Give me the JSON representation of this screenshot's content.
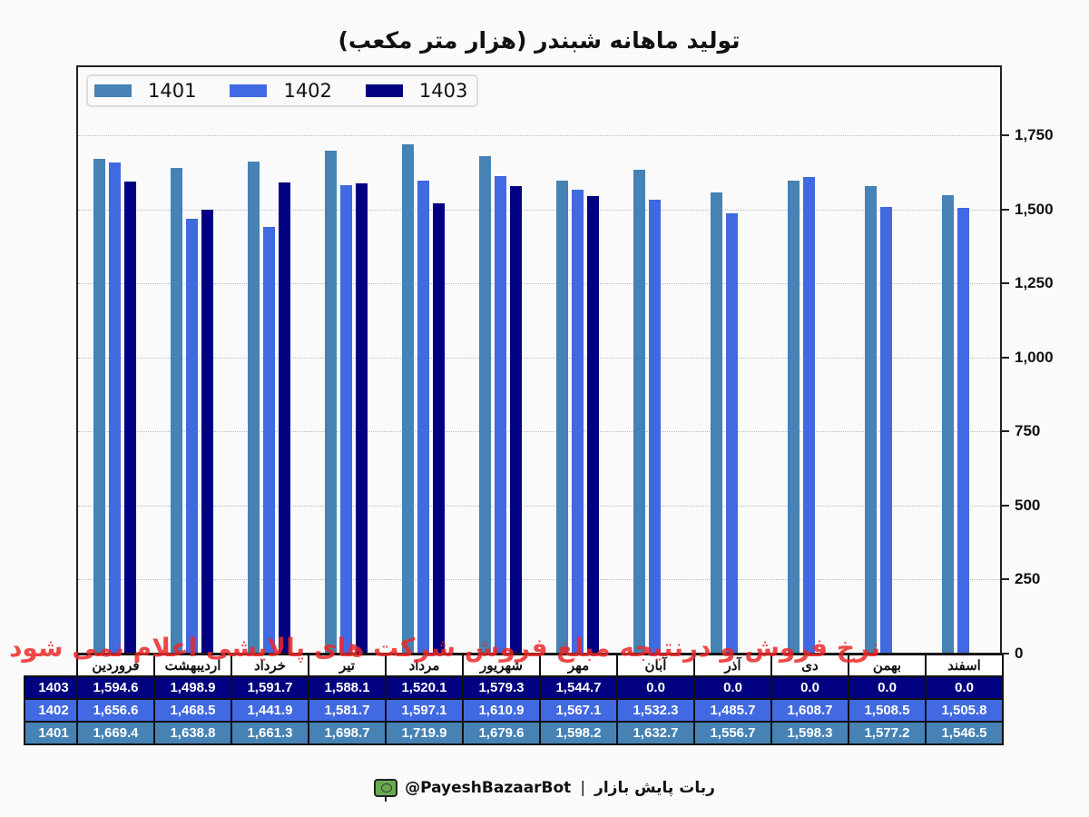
{
  "title": "تولید ماهانه شبندر (هزار متر مکعب)",
  "watermark": "نرخ فروش و درنتیجه مبلغ فروش شرکت های پالایشی اعلام نمی شود",
  "footer": {
    "handle": "@PayeshBazaarBot",
    "separator": "|",
    "brand": "ربات پایش بازار"
  },
  "legend": [
    {
      "label": "1401",
      "color": "#4682b4"
    },
    {
      "label": "1402",
      "color": "#4169e1"
    },
    {
      "label": "1403",
      "color": "#000080"
    }
  ],
  "yaxis": {
    "ticks": [
      "0",
      "250",
      "500",
      "750",
      "1,000",
      "1,250",
      "1,500",
      "1,750"
    ]
  },
  "chart_data": {
    "type": "bar",
    "title": "تولید ماهانه شبندر (هزار متر مکعب)",
    "xlabel": "",
    "ylabel": "",
    "ylim": [
      0,
      1980
    ],
    "grid": true,
    "legend_position": "upper left",
    "categories": [
      "فروردین",
      "اردیبهشت",
      "خرداد",
      "تیر",
      "مرداد",
      "شهریور",
      "مهر",
      "آبان",
      "آذر",
      "دی",
      "بهمن",
      "اسفند"
    ],
    "series": [
      {
        "name": "1401",
        "color": "#4682b4",
        "values": [
          1669.4,
          1638.8,
          1661.3,
          1698.7,
          1719.9,
          1679.6,
          1598.2,
          1632.7,
          1556.7,
          1598.3,
          1577.2,
          1546.5
        ]
      },
      {
        "name": "1402",
        "color": "#4169e1",
        "values": [
          1656.6,
          1468.5,
          1441.9,
          1581.7,
          1597.1,
          1610.9,
          1567.1,
          1532.3,
          1485.7,
          1608.7,
          1508.5,
          1505.8
        ]
      },
      {
        "name": "1403",
        "color": "#000080",
        "values": [
          1594.6,
          1498.9,
          1591.7,
          1588.1,
          1520.1,
          1579.3,
          1544.7,
          0.0,
          0.0,
          0.0,
          0.0,
          0.0
        ]
      }
    ],
    "yticks": [
      0,
      250,
      500,
      750,
      1000,
      1250,
      1500,
      1750
    ]
  },
  "table": {
    "headers": [
      "فروردین",
      "اردیبهشت",
      "خرداد",
      "تیر",
      "مرداد",
      "شهریور",
      "مهر",
      "آبان",
      "آذر",
      "دی",
      "بهمن",
      "اسفند"
    ],
    "rows": [
      {
        "label": "1403",
        "color": "#000080",
        "cells": [
          "1,594.6",
          "1,498.9",
          "1,591.7",
          "1,588.1",
          "1,520.1",
          "1,579.3",
          "1,544.7",
          "0.0",
          "0.0",
          "0.0",
          "0.0",
          "0.0"
        ]
      },
      {
        "label": "1402",
        "color": "#4169e1",
        "cells": [
          "1,656.6",
          "1,468.5",
          "1,441.9",
          "1,581.7",
          "1,597.1",
          "1,610.9",
          "1,567.1",
          "1,532.3",
          "1,485.7",
          "1,608.7",
          "1,508.5",
          "1,505.8"
        ]
      },
      {
        "label": "1401",
        "color": "#4682b4",
        "cells": [
          "1,669.4",
          "1,638.8",
          "1,661.3",
          "1,698.7",
          "1,719.9",
          "1,679.6",
          "1,598.2",
          "1,632.7",
          "1,556.7",
          "1,598.3",
          "1,577.2",
          "1,546.5"
        ]
      }
    ]
  }
}
